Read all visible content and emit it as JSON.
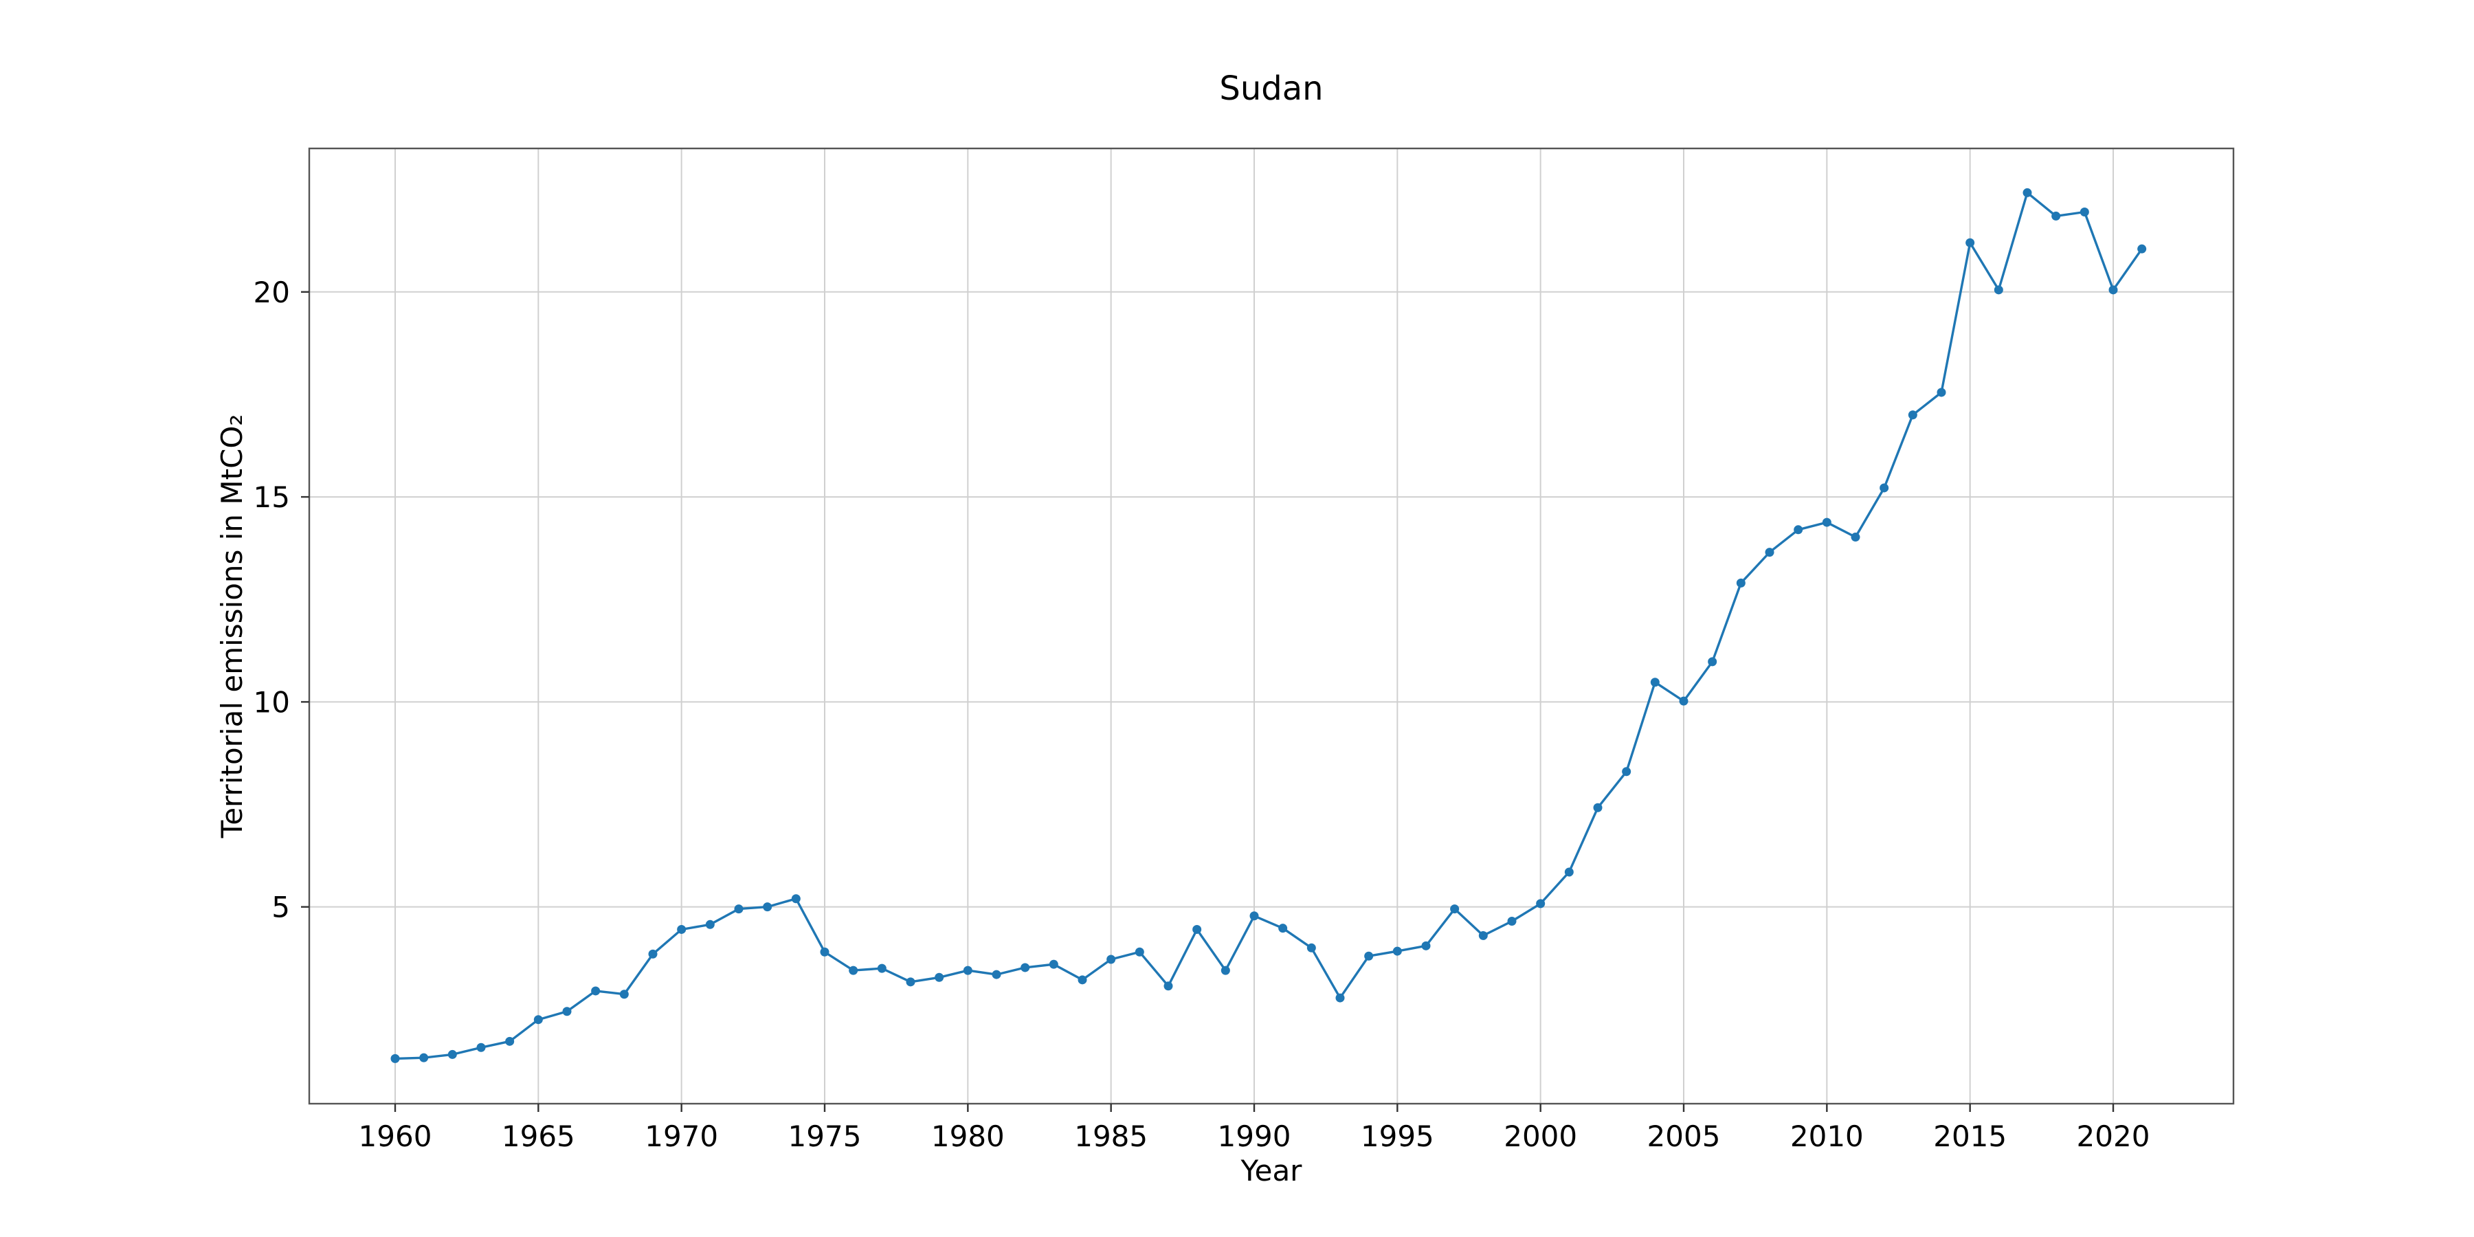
{
  "chart_data": {
    "type": "line",
    "title": "Sudan",
    "xlabel": "Year",
    "ylabel": "Territorial emissions in MtCO₂",
    "xlim": [
      1957,
      2024.2
    ],
    "ylim": [
      0.2,
      23.5
    ],
    "grid": true,
    "xticks": [
      1960,
      1965,
      1970,
      1975,
      1980,
      1985,
      1990,
      1995,
      2000,
      2005,
      2010,
      2015,
      2020
    ],
    "yticks": [
      5,
      10,
      15,
      20
    ],
    "colors": {
      "line": "#1f77b4"
    },
    "series": [
      {
        "x": [
          1960,
          1961,
          1962,
          1963,
          1964,
          1965,
          1966,
          1967,
          1968,
          1969,
          1970,
          1971,
          1972,
          1973,
          1974,
          1975,
          1976,
          1977,
          1978,
          1979,
          1980,
          1981,
          1982,
          1983,
          1984,
          1985,
          1986,
          1987,
          1988,
          1989,
          1990,
          1991,
          1992,
          1993,
          1994,
          1995,
          1996,
          1997,
          1998,
          1999,
          2000,
          2001,
          2002,
          2003,
          2004,
          2005,
          2006,
          2007,
          2008,
          2009,
          2010,
          2011,
          2012,
          2013,
          2014,
          2015,
          2016,
          2017,
          2018,
          2019,
          2020,
          2021
        ],
        "values": [
          1.3,
          1.32,
          1.4,
          1.57,
          1.72,
          2.25,
          2.45,
          2.95,
          2.87,
          3.85,
          4.45,
          4.57,
          4.95,
          5.0,
          5.2,
          3.9,
          3.45,
          3.5,
          3.17,
          3.28,
          3.45,
          3.35,
          3.52,
          3.6,
          3.22,
          3.72,
          3.9,
          3.07,
          4.45,
          3.45,
          4.78,
          4.48,
          4.0,
          2.78,
          3.8,
          3.92,
          4.05,
          4.95,
          4.3,
          4.65,
          5.08,
          5.85,
          7.42,
          8.3,
          10.48,
          10.02,
          10.98,
          12.9,
          13.65,
          14.2,
          14.38,
          14.02,
          15.22,
          17.0,
          17.55,
          21.2,
          20.05,
          22.42,
          21.85,
          21.95,
          20.05,
          21.05
        ]
      }
    ]
  }
}
